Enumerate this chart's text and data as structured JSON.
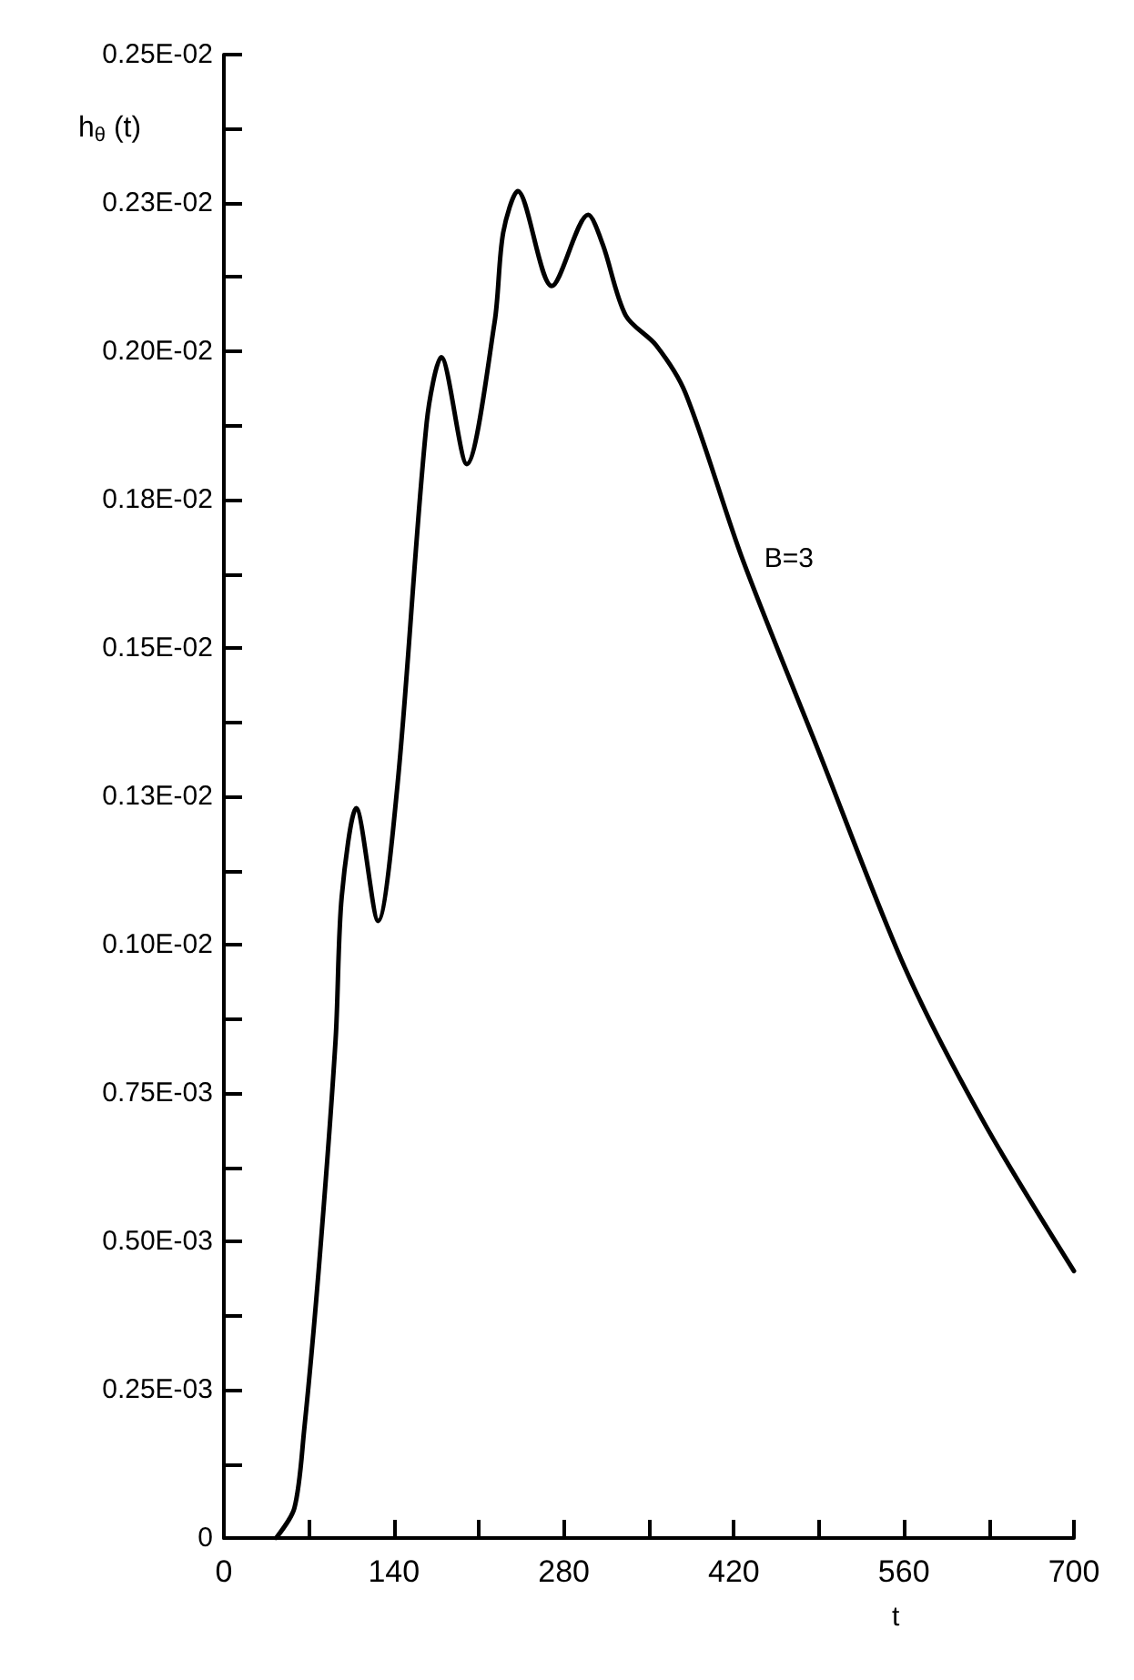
{
  "chart_data": {
    "type": "line",
    "xlabel": "t",
    "ylabel": "h$_{θ}$ (t)",
    "xlim": [
      0,
      700
    ],
    "ylim": [
      0,
      0.0025
    ],
    "xticks": [
      0,
      {
        "value": 70,
        "label": null
      },
      140,
      {
        "value": 210,
        "label": null
      },
      280,
      {
        "value": 350,
        "label": null
      },
      420,
      {
        "value": 490,
        "label": null
      },
      560,
      {
        "value": 630,
        "label": null
      },
      700
    ],
    "yticks": [
      0,
      {
        "value": 0.000125,
        "label": null
      },
      {
        "value": 0.00025,
        "label": "0.25E-03"
      },
      {
        "value": 0.000375,
        "label": null
      },
      {
        "value": 0.0005,
        "label": "0.50E-03"
      },
      {
        "value": 0.000625,
        "label": null
      },
      {
        "value": 0.00075,
        "label": "0.75E-03"
      },
      {
        "value": 0.000875,
        "label": null
      },
      {
        "value": 0.001,
        "label": "0.10E-02"
      },
      {
        "value": 0.001125,
        "label": null
      },
      {
        "value": 0.00125,
        "label": "0.13E-02"
      },
      {
        "value": 0.001375,
        "label": null
      },
      {
        "value": 0.0015,
        "label": "0.15E-02"
      },
      {
        "value": 0.001625,
        "label": null
      },
      {
        "value": 0.00175,
        "label": "0.18E-02"
      },
      {
        "value": 0.001875,
        "label": null
      },
      {
        "value": 0.002,
        "label": "0.20E-02"
      },
      {
        "value": 0.002125,
        "label": null
      },
      {
        "value": 0.00225,
        "label": "0.23E-02"
      },
      {
        "value": 0.002375,
        "label": null
      },
      {
        "value": 0.0025,
        "label": "0.25E-02"
      }
    ],
    "grid": false,
    "legend": false,
    "marker": "none",
    "line_style": "solid",
    "series": [
      {
        "name": "B=3",
        "color": "#000000",
        "x": [
          43,
          58,
          66,
          78,
          92,
          97,
          109,
          127,
          143,
          167,
          179,
          200,
          223,
          230,
          242,
          270,
          300,
          312,
          331,
          356,
          380,
          427,
          489,
          561,
          626,
          700
        ],
        "values": [
          0,
          5e-05,
          0.00018,
          0.00045,
          0.00084,
          0.00108,
          0.00123,
          0.00104,
          0.00127,
          0.00188,
          0.00199,
          0.00181,
          0.00205,
          0.0022,
          0.00227,
          0.00211,
          0.00223,
          0.00218,
          0.00206,
          0.00201,
          0.00193,
          0.00165,
          0.00133,
          0.00096,
          0.0007,
          0.00045
        ]
      }
    ]
  }
}
